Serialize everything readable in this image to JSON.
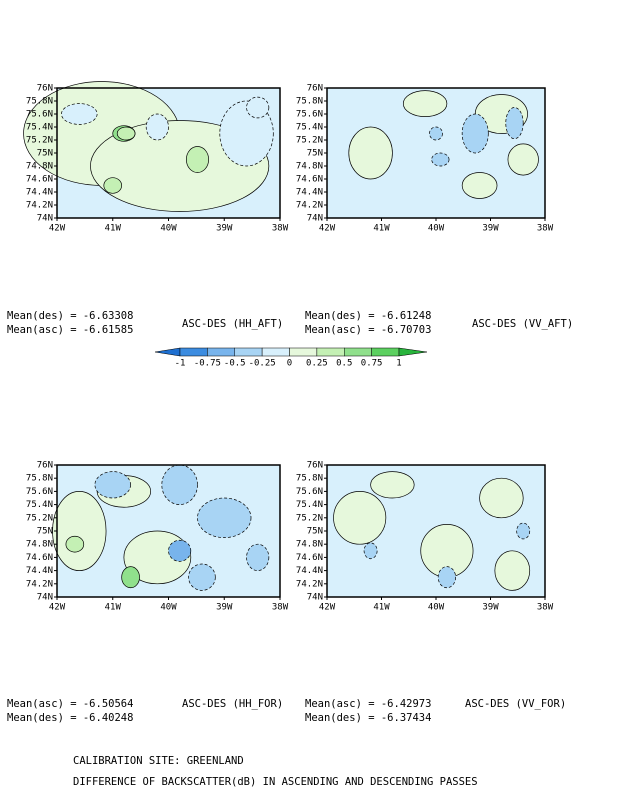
{
  "axes": {
    "y_labels": [
      "76N",
      "75.8N",
      "75.6N",
      "75.4N",
      "75.2N",
      "75N",
      "74.8N",
      "74.6N",
      "74.4N",
      "74.2N",
      "74N"
    ],
    "x_labels": [
      "42W",
      "41W",
      "40W",
      "39W",
      "38W"
    ]
  },
  "panels": [
    {
      "title": "ASC-DES (HH_AFT)",
      "stats": [
        "Mean(des) = -6.63308",
        "Mean(asc) = -6.61585"
      ]
    },
    {
      "title": "ASC-DES (VV_AFT)",
      "stats": [
        "Mean(des) = -6.61248",
        "Mean(asc) = -6.70703"
      ]
    },
    {
      "title": "ASC-DES (HH_FOR)",
      "stats": [
        "Mean(asc) = -6.50564",
        "Mean(des) = -6.40248"
      ]
    },
    {
      "title": "ASC-DES (VV_FOR)",
      "stats": [
        "Mean(asc) = -6.42973",
        "Mean(des) = -6.37434"
      ]
    }
  ],
  "colorbar": {
    "labels": [
      "-1",
      "-0.75",
      "-0.5",
      "-0.25",
      "0",
      "0.25",
      "0.5",
      "0.75",
      "1"
    ],
    "colors": [
      "#1e6fd0",
      "#3c8ce0",
      "#78b4ec",
      "#a8d4f4",
      "#d8f0fc",
      "#e6f8dc",
      "#c4f0b4",
      "#90e08c",
      "#5cd060",
      "#28b43c"
    ]
  },
  "footer": [
    "CALIBRATION SITE: GREENLAND",
    "DIFFERENCE OF BACKSCATTER(dB) IN ASCENDING AND DESCENDING PASSES"
  ]
}
